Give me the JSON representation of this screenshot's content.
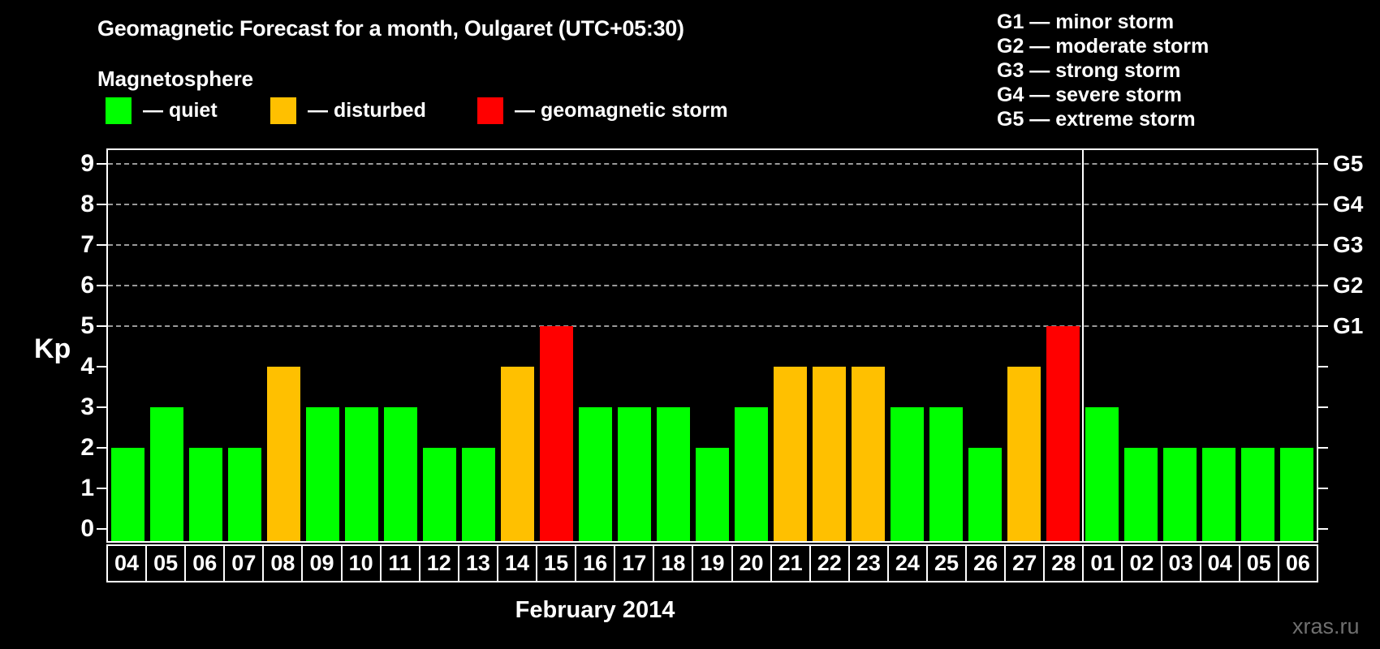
{
  "title": "Geomagnetic Forecast for a month, Oulgaret (UTC+05:30)",
  "legend": {
    "heading": "Magnetosphere",
    "items": [
      {
        "label": "— quiet",
        "color": "#00FF00"
      },
      {
        "label": "— disturbed",
        "color": "#FFC000"
      },
      {
        "label": "— geomagnetic storm",
        "color": "#FF0000"
      }
    ]
  },
  "storm_scale_legend": [
    "G1 — minor storm",
    "G2 — moderate storm",
    "G3 — strong storm",
    "G4 — severe storm",
    "G5 — extreme storm"
  ],
  "watermark": "xras.ru",
  "chart_data": {
    "type": "bar",
    "xlabel": "February 2014",
    "ylabel": "Kp",
    "ylim": [
      0,
      9.6
    ],
    "yticks": [
      0,
      1,
      2,
      3,
      4,
      5,
      6,
      7,
      8,
      9
    ],
    "gridlines_at": [
      5,
      6,
      7,
      8,
      9
    ],
    "grid": "dashed horizontal at storm levels only",
    "legend_position": "top",
    "right_axis": [
      {
        "value": 5,
        "label": "G1"
      },
      {
        "value": 6,
        "label": "G2"
      },
      {
        "value": 7,
        "label": "G3"
      },
      {
        "value": 8,
        "label": "G4"
      },
      {
        "value": 9,
        "label": "G5"
      }
    ],
    "state_colors": {
      "quiet": "#00FF00",
      "disturbed": "#FFC000",
      "storm": "#FF0000"
    },
    "month_boundary_after_index": 24,
    "bars": [
      {
        "day": "04",
        "kp": 2,
        "state": "quiet"
      },
      {
        "day": "05",
        "kp": 3,
        "state": "quiet"
      },
      {
        "day": "06",
        "kp": 2,
        "state": "quiet"
      },
      {
        "day": "07",
        "kp": 2,
        "state": "quiet"
      },
      {
        "day": "08",
        "kp": 4,
        "state": "disturbed"
      },
      {
        "day": "09",
        "kp": 3,
        "state": "quiet"
      },
      {
        "day": "10",
        "kp": 3,
        "state": "quiet"
      },
      {
        "day": "11",
        "kp": 3,
        "state": "quiet"
      },
      {
        "day": "12",
        "kp": 2,
        "state": "quiet"
      },
      {
        "day": "13",
        "kp": 2,
        "state": "quiet"
      },
      {
        "day": "14",
        "kp": 4,
        "state": "disturbed"
      },
      {
        "day": "15",
        "kp": 5,
        "state": "storm"
      },
      {
        "day": "16",
        "kp": 3,
        "state": "quiet"
      },
      {
        "day": "17",
        "kp": 3,
        "state": "quiet"
      },
      {
        "day": "18",
        "kp": 3,
        "state": "quiet"
      },
      {
        "day": "19",
        "kp": 2,
        "state": "quiet"
      },
      {
        "day": "20",
        "kp": 3,
        "state": "quiet"
      },
      {
        "day": "21",
        "kp": 4,
        "state": "disturbed"
      },
      {
        "day": "22",
        "kp": 4,
        "state": "disturbed"
      },
      {
        "day": "23",
        "kp": 4,
        "state": "disturbed"
      },
      {
        "day": "24",
        "kp": 3,
        "state": "quiet"
      },
      {
        "day": "25",
        "kp": 3,
        "state": "quiet"
      },
      {
        "day": "26",
        "kp": 2,
        "state": "quiet"
      },
      {
        "day": "27",
        "kp": 4,
        "state": "disturbed"
      },
      {
        "day": "28",
        "kp": 5,
        "state": "storm"
      },
      {
        "day": "01",
        "kp": 3,
        "state": "quiet"
      },
      {
        "day": "02",
        "kp": 2,
        "state": "quiet"
      },
      {
        "day": "03",
        "kp": 2,
        "state": "quiet"
      },
      {
        "day": "04",
        "kp": 2,
        "state": "quiet"
      },
      {
        "day": "05",
        "kp": 2,
        "state": "quiet"
      },
      {
        "day": "06",
        "kp": 2,
        "state": "quiet"
      }
    ]
  }
}
